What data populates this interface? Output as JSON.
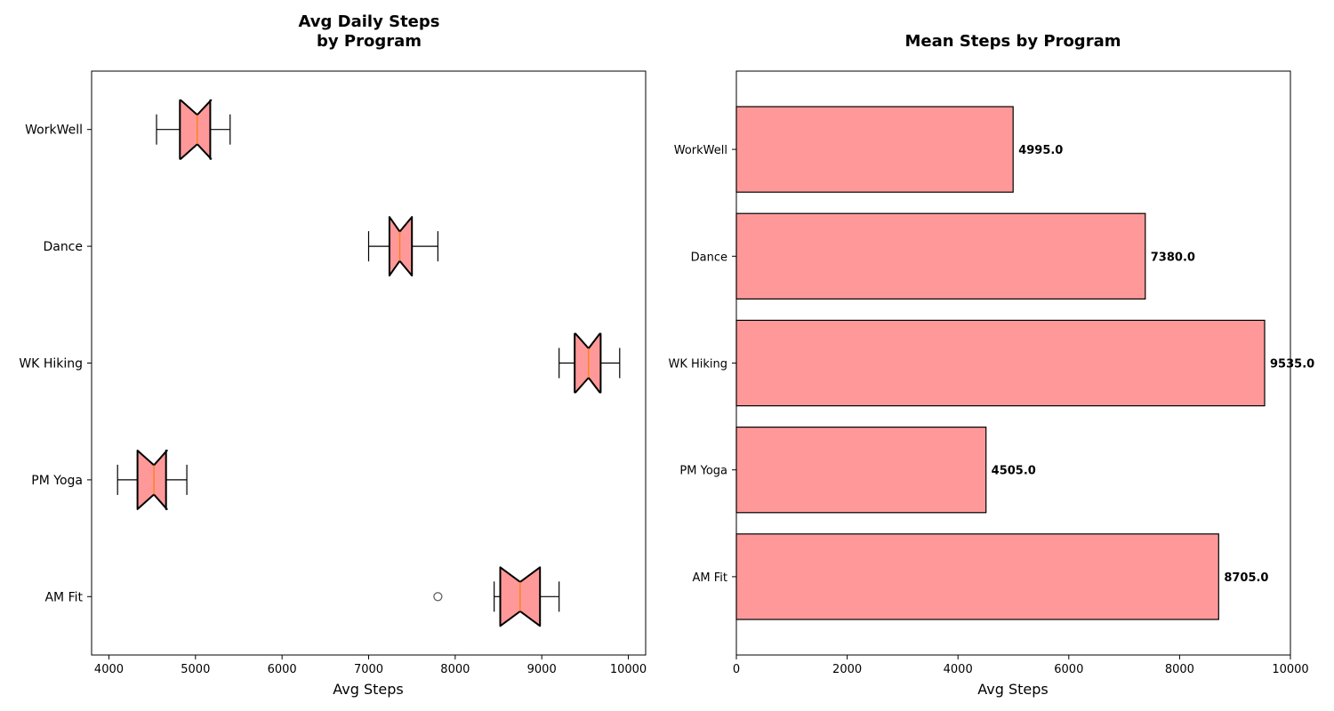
{
  "colors": {
    "box_fill": "#ff9999",
    "box_edge": "#000000",
    "median": "#ff7f0e",
    "bar_fill": "#ff9999",
    "bar_edge": "#000000",
    "outlier": "#666666"
  },
  "chart_data": [
    {
      "type": "box",
      "orientation": "horizontal",
      "notched": true,
      "title_lines": [
        "Avg Daily Steps",
        "by Program"
      ],
      "xlabel": "Avg Steps",
      "xlim": [
        3800,
        10200
      ],
      "xticks": [
        4000,
        5000,
        6000,
        7000,
        8000,
        9000,
        10000
      ],
      "xtick_labels": [
        "4000",
        "5000",
        "6000",
        "7000",
        "8000",
        "9000",
        "10000"
      ],
      "categories": [
        "AM Fit",
        "PM Yoga",
        "WK Hiking",
        "Dance",
        "WorkWell"
      ],
      "boxes": [
        {
          "category": "AM Fit",
          "whisker_low": 8450,
          "q1": 8520,
          "median": 8750,
          "q3": 8980,
          "whisker_high": 9200,
          "notch_low": 8520,
          "notch_high": 8980,
          "outliers": [
            7800
          ]
        },
        {
          "category": "PM Yoga",
          "whisker_low": 4100,
          "q1": 4330,
          "median": 4520,
          "q3": 4660,
          "whisker_high": 4900,
          "notch_low": 4330,
          "notch_high": 4670,
          "outliers": []
        },
        {
          "category": "WK Hiking",
          "whisker_low": 9200,
          "q1": 9380,
          "median": 9540,
          "q3": 9680,
          "whisker_high": 9900,
          "notch_low": 9390,
          "notch_high": 9670,
          "outliers": []
        },
        {
          "category": "Dance",
          "whisker_low": 7000,
          "q1": 7240,
          "median": 7360,
          "q3": 7500,
          "whisker_high": 7800,
          "notch_low": 7240,
          "notch_high": 7500,
          "outliers": []
        },
        {
          "category": "WorkWell",
          "whisker_low": 4550,
          "q1": 4820,
          "median": 5020,
          "q3": 5170,
          "whisker_high": 5400,
          "notch_low": 4830,
          "notch_high": 5180,
          "outliers": []
        }
      ]
    },
    {
      "type": "bar",
      "orientation": "horizontal",
      "title": "Mean Steps by Program",
      "xlabel": "Avg Steps",
      "xlim": [
        0,
        10000
      ],
      "xticks": [
        0,
        2000,
        4000,
        6000,
        8000,
        10000
      ],
      "xtick_labels": [
        "0",
        "2000",
        "4000",
        "6000",
        "8000",
        "10000"
      ],
      "categories": [
        "AM Fit",
        "PM Yoga",
        "WK Hiking",
        "Dance",
        "WorkWell"
      ],
      "values": [
        8705.0,
        4505.0,
        9535.0,
        7380.0,
        4995.0
      ],
      "value_labels": [
        "8705.0",
        "4505.0",
        "9535.0",
        "7380.0",
        "4995.0"
      ]
    }
  ]
}
